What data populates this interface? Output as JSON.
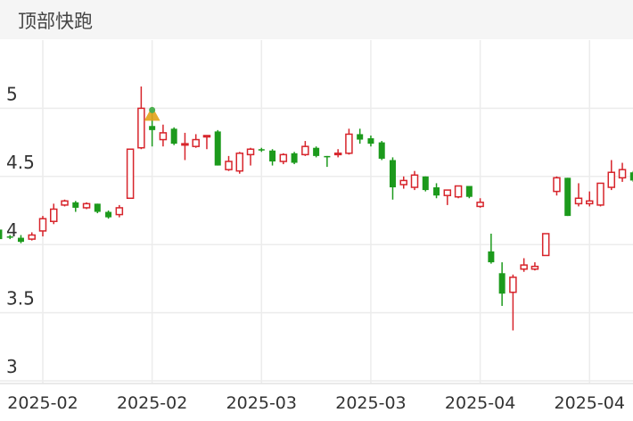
{
  "header": {
    "title": "顶部快跑"
  },
  "chart_data": {
    "type": "candlestick",
    "categories": [
      null,
      null,
      null,
      null,
      "2025-02",
      null,
      null,
      null,
      null,
      null,
      null,
      null,
      null,
      null,
      "2025-02",
      null,
      null,
      null,
      null,
      null,
      null,
      null,
      null,
      null,
      "2025-03",
      null,
      null,
      null,
      null,
      null,
      null,
      null,
      null,
      null,
      "2025-03",
      null,
      null,
      null,
      null,
      null,
      null,
      null,
      null,
      null,
      "2025-04",
      null,
      null,
      null,
      null,
      null,
      null,
      null,
      null,
      null,
      "2025-04",
      null,
      null,
      null,
      null
    ],
    "open": [
      4.11,
      4.06,
      4.05,
      4.04,
      4.1,
      4.17,
      4.29,
      4.31,
      4.27,
      4.3,
      4.24,
      4.22,
      4.34,
      4.71,
      4.87,
      4.77,
      4.85,
      4.73,
      4.72,
      4.79,
      4.83,
      4.55,
      4.54,
      4.66,
      4.7,
      4.69,
      4.61,
      4.67,
      4.66,
      4.71,
      4.65,
      4.66,
      4.67,
      4.81,
      4.78,
      4.75,
      4.62,
      4.44,
      4.42,
      4.5,
      4.42,
      4.36,
      4.35,
      4.43,
      4.28,
      3.95,
      3.79,
      3.65,
      3.82,
      3.82,
      3.92,
      4.39,
      4.49,
      4.3,
      4.3,
      4.29,
      4.42,
      4.49,
      4.53
    ],
    "high": [
      4.12,
      4.07,
      4.07,
      4.09,
      4.21,
      4.3,
      4.33,
      4.32,
      4.31,
      4.3,
      4.25,
      4.29,
      4.7,
      5.16,
      5.0,
      4.88,
      4.86,
      4.82,
      4.81,
      4.8,
      4.84,
      4.65,
      4.68,
      4.71,
      4.71,
      4.7,
      4.67,
      4.68,
      4.76,
      4.72,
      4.65,
      4.7,
      4.85,
      4.85,
      4.8,
      4.76,
      4.64,
      4.5,
      4.54,
      4.5,
      4.45,
      4.4,
      4.43,
      4.43,
      4.34,
      4.08,
      3.87,
      3.78,
      3.9,
      3.87,
      4.08,
      4.5,
      4.49,
      4.45,
      4.39,
      4.45,
      4.62,
      4.6,
      4.54
    ],
    "low": [
      4.03,
      4.04,
      4.01,
      4.03,
      4.06,
      4.15,
      4.28,
      4.24,
      4.26,
      4.23,
      4.19,
      4.2,
      4.34,
      4.7,
      4.72,
      4.72,
      4.73,
      4.62,
      4.71,
      4.7,
      4.58,
      4.54,
      4.52,
      4.58,
      4.68,
      4.58,
      4.59,
      4.59,
      4.65,
      4.64,
      4.57,
      4.64,
      4.66,
      4.74,
      4.72,
      4.62,
      4.33,
      4.41,
      4.4,
      4.39,
      4.34,
      4.29,
      4.34,
      4.34,
      4.27,
      3.86,
      3.55,
      3.37,
      3.8,
      3.81,
      3.92,
      4.36,
      4.21,
      4.28,
      4.28,
      4.28,
      4.4,
      4.46,
      4.46
    ],
    "close": [
      4.04,
      4.05,
      4.02,
      4.07,
      4.19,
      4.26,
      4.32,
      4.27,
      4.3,
      4.24,
      4.2,
      4.27,
      4.7,
      5.0,
      4.84,
      4.82,
      4.74,
      4.74,
      4.77,
      4.8,
      4.58,
      4.61,
      4.67,
      4.7,
      4.69,
      4.61,
      4.66,
      4.6,
      4.72,
      4.65,
      4.64,
      4.67,
      4.81,
      4.77,
      4.74,
      4.63,
      4.42,
      4.47,
      4.51,
      4.4,
      4.36,
      4.4,
      4.43,
      4.35,
      4.31,
      3.87,
      3.64,
      3.76,
      3.85,
      3.84,
      4.08,
      4.49,
      4.21,
      4.34,
      4.32,
      4.45,
      4.53,
      4.55,
      4.47
    ],
    "up_color": "#d7242b",
    "down_color": "#1c9a1c",
    "ylim": [
      3,
      5.5
    ],
    "yticks": [
      3,
      3.5,
      4,
      4.5,
      5
    ],
    "grid": true
  }
}
